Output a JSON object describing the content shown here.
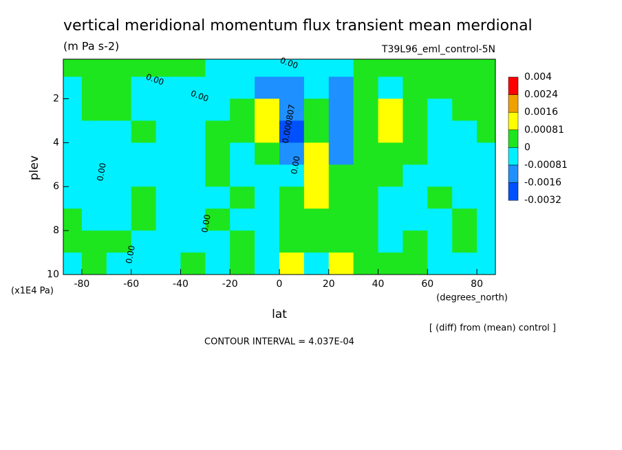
{
  "chart_data": {
    "type": "contour",
    "title": "vertical meridional momentum flux transient mean merdional",
    "subtitle": "(m Pa s-2)",
    "dataset": "T39L96_eml_control-5N",
    "x_label": "lat",
    "x_units": "(degrees_north)",
    "y_label": "plev",
    "y_units": "(x1E4 Pa)",
    "note": "[ (diff) from (mean) control ]",
    "footer": "CONTOUR INTERVAL = 4.037E-04",
    "xlim": [
      -87.5,
      87.5
    ],
    "xticks": [
      -80,
      -60,
      -40,
      -20,
      0,
      20,
      40,
      60,
      80
    ],
    "ylim": [
      10,
      0.2
    ],
    "yticks": [
      2,
      4,
      6,
      8,
      10
    ],
    "x": [
      -85,
      -75,
      -65,
      -55,
      -45,
      -35,
      -25,
      -15,
      -5,
      5,
      15,
      25,
      35,
      45,
      55,
      65,
      75,
      85
    ],
    "y": [
      0.5,
      1.5,
      2.5,
      3.5,
      4.5,
      5.5,
      6.5,
      7.5,
      8.5,
      9.5
    ],
    "z": [
      [
        0.0004,
        0.0004,
        0.0004,
        0.0004,
        0.0004,
        0.0004,
        -0.0004,
        -0.0004,
        -0.0004,
        -0.0004,
        -0.0004,
        -0.0004,
        0.0004,
        0.0004,
        0.0004,
        0.0004,
        0.0004,
        0.0004
      ],
      [
        -0.0004,
        0.0004,
        0.0004,
        -0.0004,
        -0.0004,
        -0.0004,
        -0.0004,
        -0.0004,
        -0.0012,
        -0.0012,
        -0.0004,
        -0.0012,
        0.0004,
        -0.0004,
        0.0004,
        0.0004,
        0.0004,
        0.0004
      ],
      [
        -0.0004,
        0.0004,
        0.0004,
        -0.0004,
        -0.0004,
        -0.0004,
        -0.0004,
        0.0004,
        0.0012,
        -0.0012,
        0.0004,
        -0.0012,
        0.0004,
        0.0012,
        0.0004,
        -0.0004,
        0.0004,
        0.0004
      ],
      [
        -0.0004,
        -0.0004,
        -0.0004,
        0.0004,
        -0.0004,
        -0.0004,
        0.0004,
        0.0004,
        0.0012,
        -0.002,
        0.0004,
        -0.0012,
        0.0004,
        0.0012,
        0.0004,
        -0.0004,
        -0.0004,
        0.0004
      ],
      [
        -0.0004,
        -0.0004,
        -0.0004,
        -0.0004,
        -0.0004,
        -0.0004,
        0.0004,
        -0.0004,
        0.0004,
        -0.0012,
        0.0012,
        -0.0012,
        0.0004,
        0.0004,
        0.0004,
        -0.0004,
        -0.0004,
        -0.0004
      ],
      [
        -0.0004,
        -0.0004,
        -0.0004,
        -0.0004,
        -0.0004,
        -0.0004,
        0.0004,
        -0.0004,
        -0.0004,
        -0.0004,
        0.0012,
        0.0004,
        0.0004,
        0.0004,
        -0.0004,
        -0.0004,
        -0.0004,
        -0.0004
      ],
      [
        -0.0004,
        -0.0004,
        -0.0004,
        0.0004,
        -0.0004,
        -0.0004,
        -0.0004,
        0.0004,
        -0.0004,
        0.0004,
        0.0012,
        0.0004,
        0.0004,
        -0.0004,
        -0.0004,
        0.0004,
        -0.0004,
        -0.0004
      ],
      [
        0.0004,
        -0.0004,
        -0.0004,
        0.0004,
        -0.0004,
        -0.0004,
        0.0004,
        -0.0004,
        -0.0004,
        0.0004,
        0.0004,
        0.0004,
        0.0004,
        -0.0004,
        -0.0004,
        -0.0004,
        0.0004,
        -0.0004
      ],
      [
        0.0004,
        0.0004,
        0.0004,
        -0.0004,
        -0.0004,
        -0.0004,
        -0.0004,
        0.0004,
        -0.0004,
        0.0004,
        0.0004,
        0.0004,
        0.0004,
        -0.0004,
        0.0004,
        -0.0004,
        0.0004,
        -0.0004
      ],
      [
        -0.0004,
        0.0004,
        -0.0004,
        -0.0004,
        -0.0004,
        0.0004,
        -0.0004,
        0.0004,
        -0.0004,
        0.0012,
        -0.0004,
        0.0012,
        0.0004,
        0.0004,
        0.0004,
        -0.0004,
        -0.0004,
        -0.0004
      ]
    ],
    "levels": [
      0.004,
      0.0024,
      0.0016,
      0.00081,
      0,
      -0.00081,
      -0.0016,
      -0.0032
    ],
    "colors": [
      "#ff0000",
      "#f0a000",
      "#ffff00",
      "#1ee61e",
      "#00f0ff",
      "#1e90ff",
      "#0050ff"
    ],
    "contour_labels": [
      "0.00",
      "0.00",
      "0.00",
      "0.00",
      "0.00",
      "0.00",
      "0.000807",
      "0.00"
    ]
  }
}
